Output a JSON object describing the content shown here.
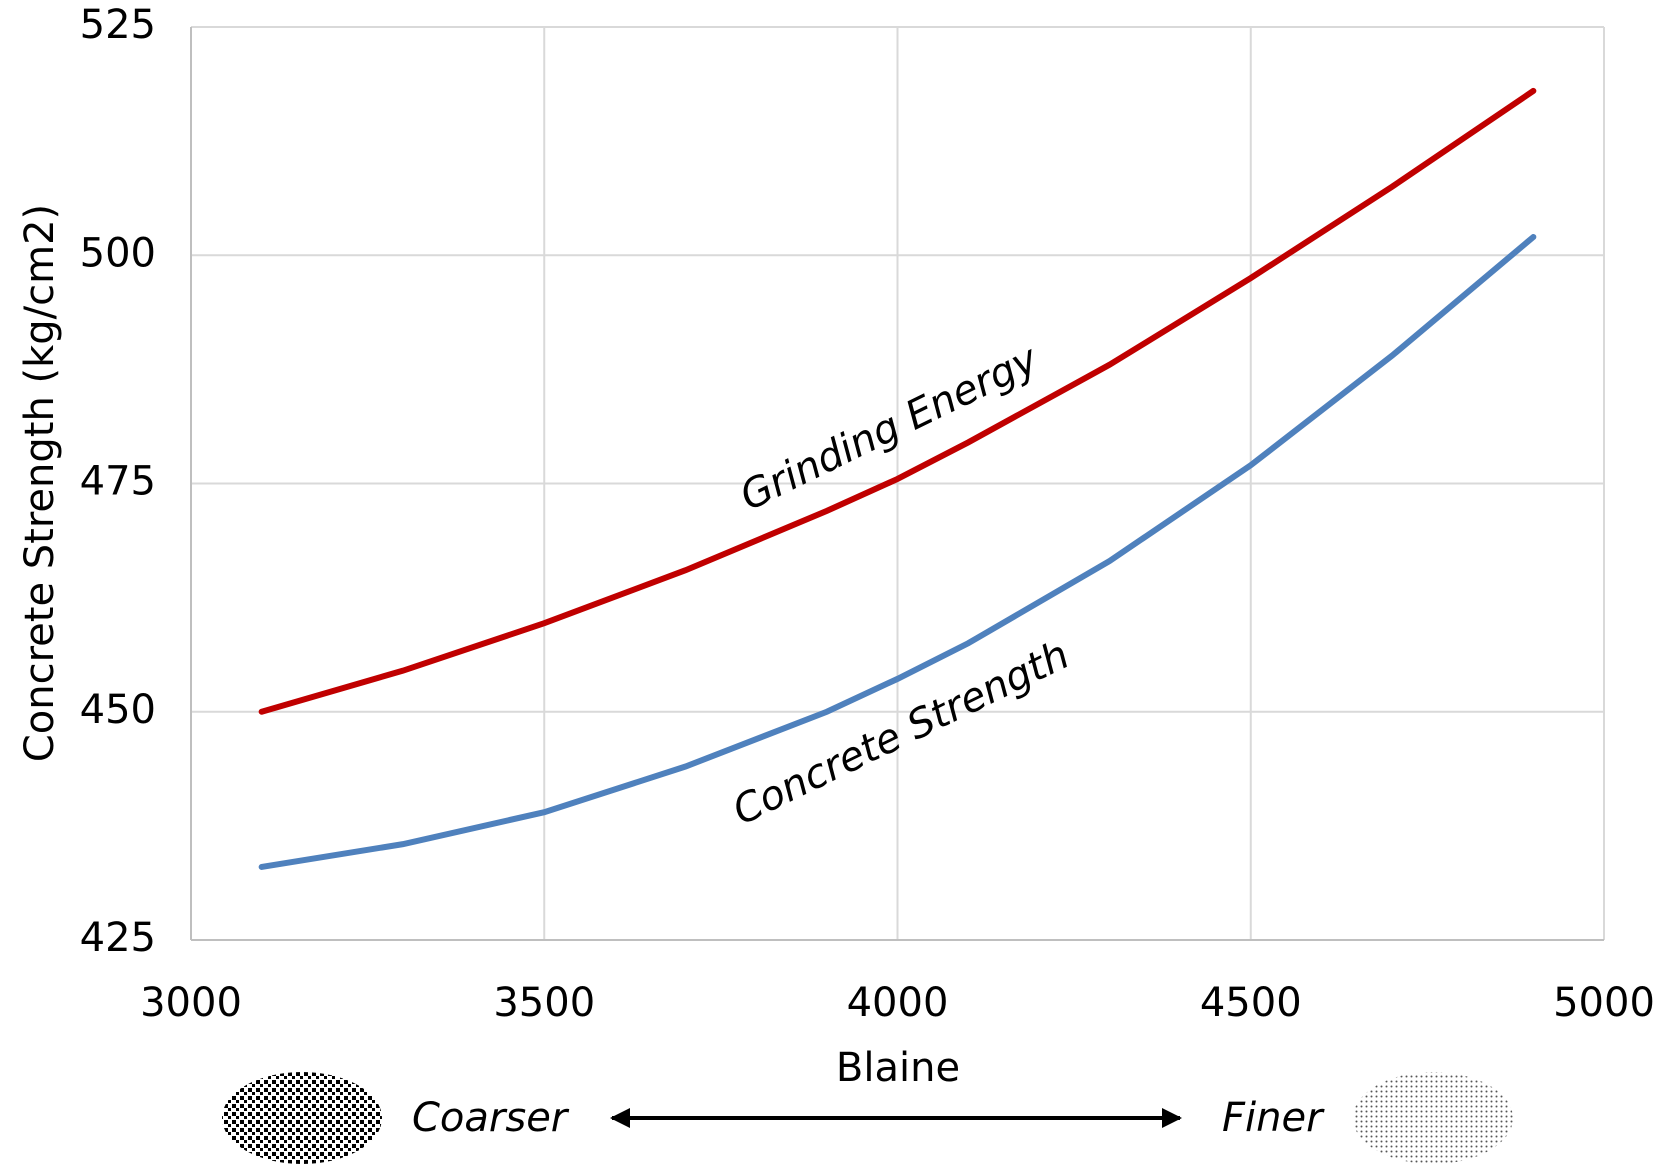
{
  "chart_data": {
    "type": "line",
    "xlabel": "Blaine",
    "ylabel": "Concrete Strength (kg/cm2)",
    "x": [
      3100,
      3300,
      3500,
      3700,
      3900,
      4000,
      4100,
      4300,
      4500,
      4700,
      4900
    ],
    "series": [
      {
        "name": "Grinding Energy",
        "color": "#c00000",
        "values": [
          450,
          454.5,
          459.7,
          465.5,
          472,
          475.5,
          479.5,
          488,
          497.5,
          507.5,
          518
        ]
      },
      {
        "name": "Concrete Strength",
        "color": "#4f81bd",
        "values": [
          433,
          435.5,
          439,
          444,
          450,
          453.6,
          457.5,
          466.5,
          477,
          489,
          502
        ]
      }
    ],
    "xlim": [
      3000,
      5000
    ],
    "xticks": [
      3000,
      3500,
      4000,
      4500,
      5000
    ],
    "ylim": [
      425,
      525
    ],
    "yticks": [
      425,
      450,
      475,
      500,
      525
    ],
    "grid": true,
    "annotations": [
      "Coarser",
      "Finer"
    ]
  }
}
